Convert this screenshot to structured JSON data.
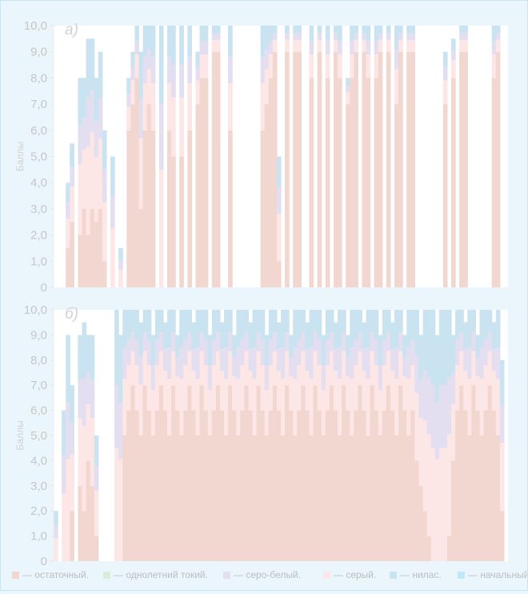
{
  "chart_data": {
    "type": "area",
    "stacked": true,
    "y_label": "Баллы",
    "ylim": [
      0,
      10
    ],
    "y_ticks": [
      "10,0",
      "9,0",
      "8,0",
      "7,0",
      "6,0",
      "5,0",
      "4,0",
      "3,0",
      "2,0",
      "1,0",
      "0"
    ],
    "legend": [
      {
        "key": "ostatochny",
        "label": "— остаточный.",
        "color": "#f2d6d0"
      },
      {
        "key": "odnoletny",
        "label": "— однолетний токий.",
        "color": "#d8eed8"
      },
      {
        "key": "sero_bely",
        "label": "— серо-белый.",
        "color": "#e3def0"
      },
      {
        "key": "sery",
        "label": "— серый.",
        "color": "#fde6e6"
      },
      {
        "key": "nilas",
        "label": "— нилас.",
        "color": "#c9e3f1"
      },
      {
        "key": "nachalny",
        "label": "— начальный",
        "color": "#bfe8f8"
      }
    ],
    "panels": [
      {
        "id": "a",
        "label": "а)",
        "x_count": 112,
        "profile": [
          [
            0,
            0,
            0.0
          ],
          [
            1,
            0,
            0.0
          ],
          [
            2,
            0,
            0.0
          ],
          [
            3,
            1.5,
            4.0
          ],
          [
            4,
            2.5,
            5.5
          ],
          [
            5,
            0,
            0.0
          ],
          [
            6,
            2.0,
            8.0
          ],
          [
            7,
            3.0,
            8.0
          ],
          [
            8,
            2.0,
            9.5
          ],
          [
            9,
            3.0,
            9.5
          ],
          [
            10,
            2.5,
            8.0
          ],
          [
            11,
            3.0,
            9.0
          ],
          [
            12,
            1.0,
            6.0
          ],
          [
            13,
            0,
            0.0
          ],
          [
            14,
            0,
            5.0
          ],
          [
            15,
            0,
            0.0
          ],
          [
            16,
            0,
            1.5
          ],
          [
            17,
            0,
            0.0
          ],
          [
            18,
            6.0,
            8.0
          ],
          [
            19,
            7.0,
            9.0
          ],
          [
            20,
            8.0,
            10.0
          ],
          [
            21,
            3.0,
            9.0
          ],
          [
            22,
            6.0,
            10.0
          ],
          [
            23,
            7.0,
            10.0
          ],
          [
            24,
            6.0,
            10.0
          ],
          [
            25,
            0,
            0.0
          ],
          [
            26,
            0,
            10.0
          ],
          [
            27,
            0,
            0.0
          ],
          [
            28,
            6.0,
            10.0
          ],
          [
            29,
            5.0,
            10.0
          ],
          [
            30,
            0,
            0.0
          ],
          [
            31,
            5.0,
            10.0
          ],
          [
            32,
            0,
            0.0
          ],
          [
            33,
            6.0,
            10.0
          ],
          [
            34,
            0,
            0.0
          ],
          [
            35,
            7.0,
            9.0
          ],
          [
            36,
            8.0,
            10.0
          ],
          [
            37,
            8.0,
            10.0
          ],
          [
            38,
            0,
            0.0
          ],
          [
            39,
            9.0,
            10.0
          ],
          [
            40,
            9.0,
            10.0
          ],
          [
            41,
            0,
            0.0
          ],
          [
            42,
            0,
            0.0
          ],
          [
            43,
            6.0,
            10.0
          ],
          [
            44,
            0,
            0.0
          ],
          [
            45,
            0,
            0.0
          ],
          [
            46,
            0,
            0.0
          ],
          [
            47,
            0,
            0.0
          ],
          [
            48,
            0,
            0.0
          ],
          [
            49,
            0,
            0.0
          ],
          [
            50,
            0,
            0.0
          ],
          [
            51,
            6.0,
            10.0
          ],
          [
            52,
            7.0,
            10.0
          ],
          [
            53,
            8.0,
            10.0
          ],
          [
            54,
            9.0,
            10.0
          ],
          [
            55,
            1.0,
            5.0
          ],
          [
            56,
            0,
            0.0
          ],
          [
            57,
            9.0,
            10.0
          ],
          [
            58,
            0,
            0.0
          ],
          [
            59,
            9.0,
            10.0
          ],
          [
            60,
            9.0,
            10.0
          ],
          [
            61,
            0,
            0.0
          ],
          [
            62,
            0,
            0.0
          ],
          [
            63,
            8.0,
            10.0
          ],
          [
            64,
            0,
            0.0
          ],
          [
            65,
            9.0,
            10.0
          ],
          [
            66,
            0,
            0.0
          ],
          [
            67,
            8.0,
            10.0
          ],
          [
            68,
            0,
            0.0
          ],
          [
            69,
            9.0,
            10.0
          ],
          [
            70,
            8.0,
            10.0
          ],
          [
            71,
            0,
            0.0
          ],
          [
            72,
            7.0,
            8.0
          ],
          [
            73,
            8.0,
            10.0
          ],
          [
            74,
            9.0,
            10.0
          ],
          [
            75,
            0,
            0.0
          ],
          [
            76,
            9.0,
            10.0
          ],
          [
            77,
            8.0,
            10.0
          ],
          [
            78,
            0,
            0.0
          ],
          [
            79,
            8.0,
            10.0
          ],
          [
            80,
            9.0,
            10.0
          ],
          [
            81,
            0,
            0.0
          ],
          [
            82,
            9.0,
            10.0
          ],
          [
            83,
            0,
            0.0
          ],
          [
            84,
            7.0,
            10.0
          ],
          [
            85,
            9.0,
            10.0
          ],
          [
            86,
            0,
            0.0
          ],
          [
            87,
            9.0,
            10.0
          ],
          [
            88,
            9.0,
            10.0
          ],
          [
            89,
            0,
            0.0
          ],
          [
            90,
            0,
            0.0
          ],
          [
            91,
            0,
            0.0
          ],
          [
            92,
            0,
            0.0
          ],
          [
            93,
            0,
            0.0
          ],
          [
            94,
            0,
            0.0
          ],
          [
            95,
            0,
            0.0
          ],
          [
            96,
            7.0,
            9.0
          ],
          [
            97,
            0,
            0.0
          ],
          [
            98,
            8.0,
            9.5
          ],
          [
            99,
            0,
            0.0
          ],
          [
            100,
            9.0,
            10.0
          ],
          [
            101,
            9.0,
            10.0
          ],
          [
            102,
            0,
            0.0
          ],
          [
            103,
            0,
            0.0
          ],
          [
            104,
            0,
            0.0
          ],
          [
            105,
            0,
            0.0
          ],
          [
            106,
            0,
            0.0
          ],
          [
            107,
            0,
            0.0
          ],
          [
            108,
            8.0,
            10.0
          ],
          [
            109,
            9.0,
            10.0
          ],
          [
            110,
            0,
            0.0
          ],
          [
            111,
            0,
            0.0
          ]
        ]
      },
      {
        "id": "b",
        "label": "б)",
        "x_count": 112,
        "profile": [
          [
            0,
            0,
            2.0
          ],
          [
            1,
            0,
            0.0
          ],
          [
            2,
            0,
            6.0
          ],
          [
            3,
            0,
            9.0
          ],
          [
            4,
            2.0,
            7.0
          ],
          [
            5,
            0,
            0.0
          ],
          [
            6,
            3.0,
            9.0
          ],
          [
            7,
            2.0,
            9.5
          ],
          [
            8,
            4.0,
            9.0
          ],
          [
            9,
            3.0,
            9.0
          ],
          [
            10,
            1.0,
            5.0
          ],
          [
            11,
            0,
            0.0
          ],
          [
            12,
            0,
            0.0
          ],
          [
            13,
            0,
            0.0
          ],
          [
            14,
            0,
            0.0
          ],
          [
            15,
            0,
            10.0
          ],
          [
            16,
            0,
            9.0
          ],
          [
            17,
            5.0,
            10.0
          ],
          [
            18,
            6.0,
            10.0
          ],
          [
            19,
            7.0,
            10.0
          ],
          [
            20,
            6.0,
            10.0
          ],
          [
            21,
            5.0,
            9.5
          ],
          [
            22,
            7.0,
            10.0
          ],
          [
            23,
            6.0,
            10.0
          ],
          [
            24,
            5.0,
            9.0
          ],
          [
            25,
            6.0,
            10.0
          ],
          [
            26,
            7.0,
            10.0
          ],
          [
            27,
            6.0,
            9.5
          ],
          [
            28,
            5.0,
            10.0
          ],
          [
            29,
            7.0,
            10.0
          ],
          [
            30,
            6.0,
            9.0
          ],
          [
            31,
            5.0,
            10.0
          ],
          [
            32,
            6.0,
            10.0
          ],
          [
            33,
            7.0,
            10.0
          ],
          [
            34,
            6.0,
            9.5
          ],
          [
            35,
            5.0,
            10.0
          ],
          [
            36,
            7.0,
            10.0
          ],
          [
            37,
            6.0,
            10.0
          ],
          [
            38,
            5.0,
            9.0
          ],
          [
            39,
            6.0,
            10.0
          ],
          [
            40,
            7.0,
            10.0
          ],
          [
            41,
            6.0,
            9.5
          ],
          [
            42,
            5.0,
            10.0
          ],
          [
            43,
            7.0,
            10.0
          ],
          [
            44,
            6.0,
            9.0
          ],
          [
            45,
            5.0,
            10.0
          ],
          [
            46,
            6.0,
            10.0
          ],
          [
            47,
            7.0,
            10.0
          ],
          [
            48,
            6.0,
            9.5
          ],
          [
            49,
            5.0,
            10.0
          ],
          [
            50,
            7.0,
            10.0
          ],
          [
            51,
            6.0,
            10.0
          ],
          [
            52,
            5.0,
            9.0
          ],
          [
            53,
            6.0,
            10.0
          ],
          [
            54,
            7.0,
            10.0
          ],
          [
            55,
            6.0,
            9.5
          ],
          [
            56,
            5.0,
            10.0
          ],
          [
            57,
            7.0,
            10.0
          ],
          [
            58,
            6.0,
            9.0
          ],
          [
            59,
            5.0,
            10.0
          ],
          [
            60,
            6.0,
            10.0
          ],
          [
            61,
            7.0,
            10.0
          ],
          [
            62,
            6.0,
            9.5
          ],
          [
            63,
            5.0,
            10.0
          ],
          [
            64,
            7.0,
            10.0
          ],
          [
            65,
            6.0,
            10.0
          ],
          [
            66,
            5.0,
            9.0
          ],
          [
            67,
            6.0,
            10.0
          ],
          [
            68,
            7.0,
            10.0
          ],
          [
            69,
            6.0,
            9.5
          ],
          [
            70,
            5.0,
            10.0
          ],
          [
            71,
            7.0,
            10.0
          ],
          [
            72,
            6.0,
            9.0
          ],
          [
            73,
            5.0,
            10.0
          ],
          [
            74,
            6.0,
            10.0
          ],
          [
            75,
            7.0,
            10.0
          ],
          [
            76,
            6.0,
            9.5
          ],
          [
            77,
            5.0,
            10.0
          ],
          [
            78,
            7.0,
            10.0
          ],
          [
            79,
            6.0,
            10.0
          ],
          [
            80,
            5.0,
            9.0
          ],
          [
            81,
            6.0,
            10.0
          ],
          [
            82,
            7.0,
            10.0
          ],
          [
            83,
            6.0,
            9.5
          ],
          [
            84,
            5.0,
            10.0
          ],
          [
            85,
            7.0,
            10.0
          ],
          [
            86,
            6.0,
            9.0
          ],
          [
            87,
            5.0,
            10.0
          ],
          [
            88,
            6.0,
            10.0
          ],
          [
            89,
            4.0,
            10.0
          ],
          [
            90,
            3.0,
            9.0
          ],
          [
            91,
            2.0,
            10.0
          ],
          [
            92,
            1.0,
            10.0
          ],
          [
            93,
            0,
            10.0
          ],
          [
            94,
            0,
            9.0
          ],
          [
            95,
            0,
            10.0
          ],
          [
            96,
            0,
            10.0
          ],
          [
            97,
            1.0,
            10.0
          ],
          [
            98,
            4.0,
            9.0
          ],
          [
            99,
            6.0,
            10.0
          ],
          [
            100,
            7.0,
            10.0
          ],
          [
            101,
            6.0,
            9.5
          ],
          [
            102,
            5.0,
            10.0
          ],
          [
            103,
            7.0,
            10.0
          ],
          [
            104,
            6.0,
            9.0
          ],
          [
            105,
            5.0,
            10.0
          ],
          [
            106,
            6.0,
            10.0
          ],
          [
            107,
            7.0,
            10.0
          ],
          [
            108,
            6.0,
            9.5
          ],
          [
            109,
            5.0,
            10.0
          ],
          [
            110,
            2.0,
            8.0
          ],
          [
            111,
            0,
            0.0
          ]
        ]
      }
    ]
  }
}
